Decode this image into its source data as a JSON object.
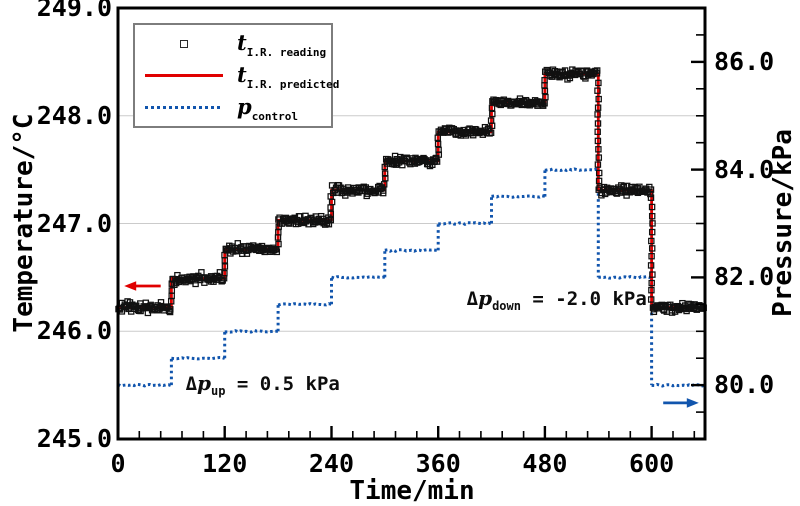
{
  "figure": {
    "background": "#ffffff",
    "frame_color": "#000000",
    "gridline_color": "#cbcbcb"
  },
  "chart_data": {
    "type": "line",
    "title": "",
    "x": {
      "label": "Time/min",
      "min": 0,
      "max": 660,
      "major_ticks": [
        0,
        120,
        240,
        360,
        480,
        600
      ],
      "tick_labels": [
        "0",
        "120",
        "240",
        "360",
        "480",
        "600"
      ],
      "minor_step": 24
    },
    "y_left": {
      "label": "Temperature/°C",
      "min": 245.0,
      "max": 249.0,
      "major_ticks": [
        245,
        246,
        247,
        248,
        249
      ],
      "tick_labels": [
        "245.0",
        "246.0",
        "247.0",
        "248.0",
        "249.0"
      ],
      "gridlines": [
        246,
        247,
        248
      ]
    },
    "y_right": {
      "label": "Pressure/kPa",
      "min": 79.0,
      "max": 87.0,
      "major_ticks": [
        80,
        82,
        84,
        86
      ],
      "tick_labels": [
        "80.0",
        "82.0",
        "84.0",
        "86.0"
      ],
      "minor_step": 0.5
    },
    "steps": {
      "time_boundaries_min": [
        0,
        60,
        120,
        180,
        240,
        300,
        360,
        420,
        480,
        540,
        600,
        660
      ],
      "pressure_kpa": [
        80.0,
        80.5,
        81.0,
        81.5,
        82.0,
        82.5,
        83.0,
        83.5,
        84.0,
        82.0,
        80.0
      ],
      "temperature_c": [
        246.22,
        246.49,
        246.76,
        247.03,
        247.31,
        247.58,
        247.85,
        248.12,
        248.39,
        247.31,
        246.22
      ]
    },
    "series": [
      {
        "id": "t_reading",
        "legend_symbol": "t",
        "legend_subscript": "I.R. reading",
        "style": "scatter-open-square",
        "color": "#111111"
      },
      {
        "id": "t_predicted",
        "legend_symbol": "t",
        "legend_subscript": "I.R. predicted",
        "style": "solid-line",
        "color": "#e00000"
      },
      {
        "id": "p_control",
        "legend_symbol": "p",
        "legend_subscript": "control",
        "style": "dotted-line",
        "color": "#1155ad"
      }
    ],
    "legend_position": "top-left",
    "grid": "horizontal-majors-only",
    "annotations": [
      {
        "delta": "Δ",
        "symbol": "p",
        "subscript": "up",
        "text": " = 0.5 kPa",
        "anchor_time_min": 76,
        "anchor_temp_c": 245.51
      },
      {
        "delta": "Δ",
        "symbol": "p",
        "subscript": "down",
        "text": " = -2.0 kPa",
        "anchor_time_min": 392,
        "anchor_temp_c": 246.3
      }
    ],
    "arrows": [
      {
        "id": "left-axis-arrow",
        "meaning": "refers-to-left-temperature-axis",
        "color": "#e00000",
        "direction": "left",
        "x_start_min": 48,
        "x_end_min": 7,
        "at_temp_c": 246.42
      },
      {
        "id": "right-axis-arrow",
        "meaning": "refers-to-right-pressure-axis",
        "color": "#1155ad",
        "direction": "right",
        "x_start_min": 613,
        "x_end_min": 653,
        "at_pressure_kpa": 79.67
      }
    ]
  }
}
